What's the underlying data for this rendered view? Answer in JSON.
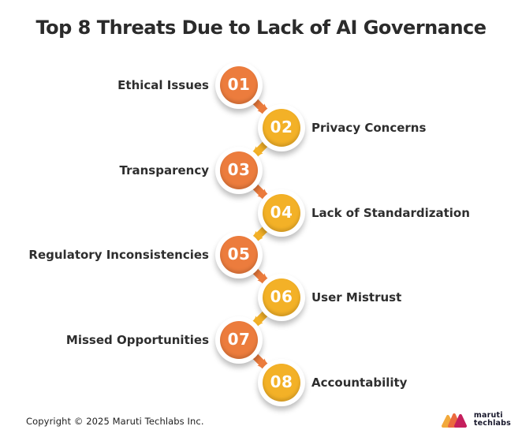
{
  "title": "Top 8 Threats Due to Lack of AI Governance",
  "items": [
    {
      "number": "01",
      "label": "Ethical Issues",
      "side": "left",
      "color": "#EC7C3D"
    },
    {
      "number": "02",
      "label": "Privacy Concerns",
      "side": "right",
      "color": "#F3B127"
    },
    {
      "number": "03",
      "label": "Transparency",
      "side": "left",
      "color": "#EC7C3D"
    },
    {
      "number": "04",
      "label": "Lack of Standardization",
      "side": "right",
      "color": "#F3B127"
    },
    {
      "number": "05",
      "label": "Regulatory Inconsistencies",
      "side": "left",
      "color": "#EC7C3D"
    },
    {
      "number": "06",
      "label": "User Mistrust",
      "side": "right",
      "color": "#F3B127"
    },
    {
      "number": "07",
      "label": "Missed Opportunities",
      "side": "left",
      "color": "#EC7C3D"
    },
    {
      "number": "08",
      "label": "Accountability",
      "side": "right",
      "color": "#F3B127"
    }
  ],
  "colors": {
    "orange": "#EC7C3D",
    "yellow": "#F3B127",
    "title_text": "#2B2B2B",
    "label_text": "#2E2E2E",
    "background": "#FFFFFF",
    "logo_yellow": "#F2A93B",
    "logo_orange": "#EB6A3E",
    "logo_crimson": "#C51F5D",
    "logo_text": "#17172B"
  },
  "footer": {
    "copyright": "Copyright © 2025 Maruti Techlabs Inc.",
    "logo_line1": "maruti",
    "logo_line2": "techlabs"
  }
}
